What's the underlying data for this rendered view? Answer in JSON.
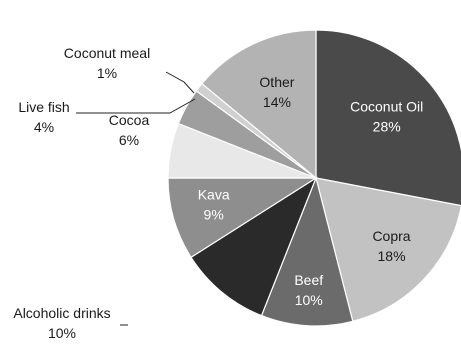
{
  "chart_data": {
    "type": "pie",
    "title": "",
    "slices": [
      {
        "label": "Coconut Oil",
        "value": 28,
        "value_label": "28%",
        "color": "#4a4a4a",
        "label_color": "#ffffff"
      },
      {
        "label": "Copra",
        "value": 18,
        "value_label": "18%",
        "color": "#c2c2c2",
        "label_color": "#1a1a1a"
      },
      {
        "label": "Beef",
        "value": 10,
        "value_label": "10%",
        "color": "#6b6b6b",
        "label_color": "#ffffff"
      },
      {
        "label": "Alcoholic drinks",
        "value": 10,
        "value_label": "10%",
        "color": "#2a2a2a",
        "label_color": "#1a1a1a"
      },
      {
        "label": "Kava",
        "value": 9,
        "value_label": "9%",
        "color": "#8e8e8e",
        "label_color": "#ffffff"
      },
      {
        "label": "Cocoa",
        "value": 6,
        "value_label": "6%",
        "color": "#e8e8e8",
        "label_color": "#1a1a1a"
      },
      {
        "label": "Live fish",
        "value": 4,
        "value_label": "4%",
        "color": "#9e9e9e",
        "label_color": "#1a1a1a"
      },
      {
        "label": "Coconut meal",
        "value": 1,
        "value_label": "1%",
        "color": "#d0d0d0",
        "label_color": "#1a1a1a"
      },
      {
        "label": "Other",
        "value": 14,
        "value_label": "14%",
        "color": "#b3b3b3",
        "label_color": "#1a1a1a"
      }
    ]
  }
}
